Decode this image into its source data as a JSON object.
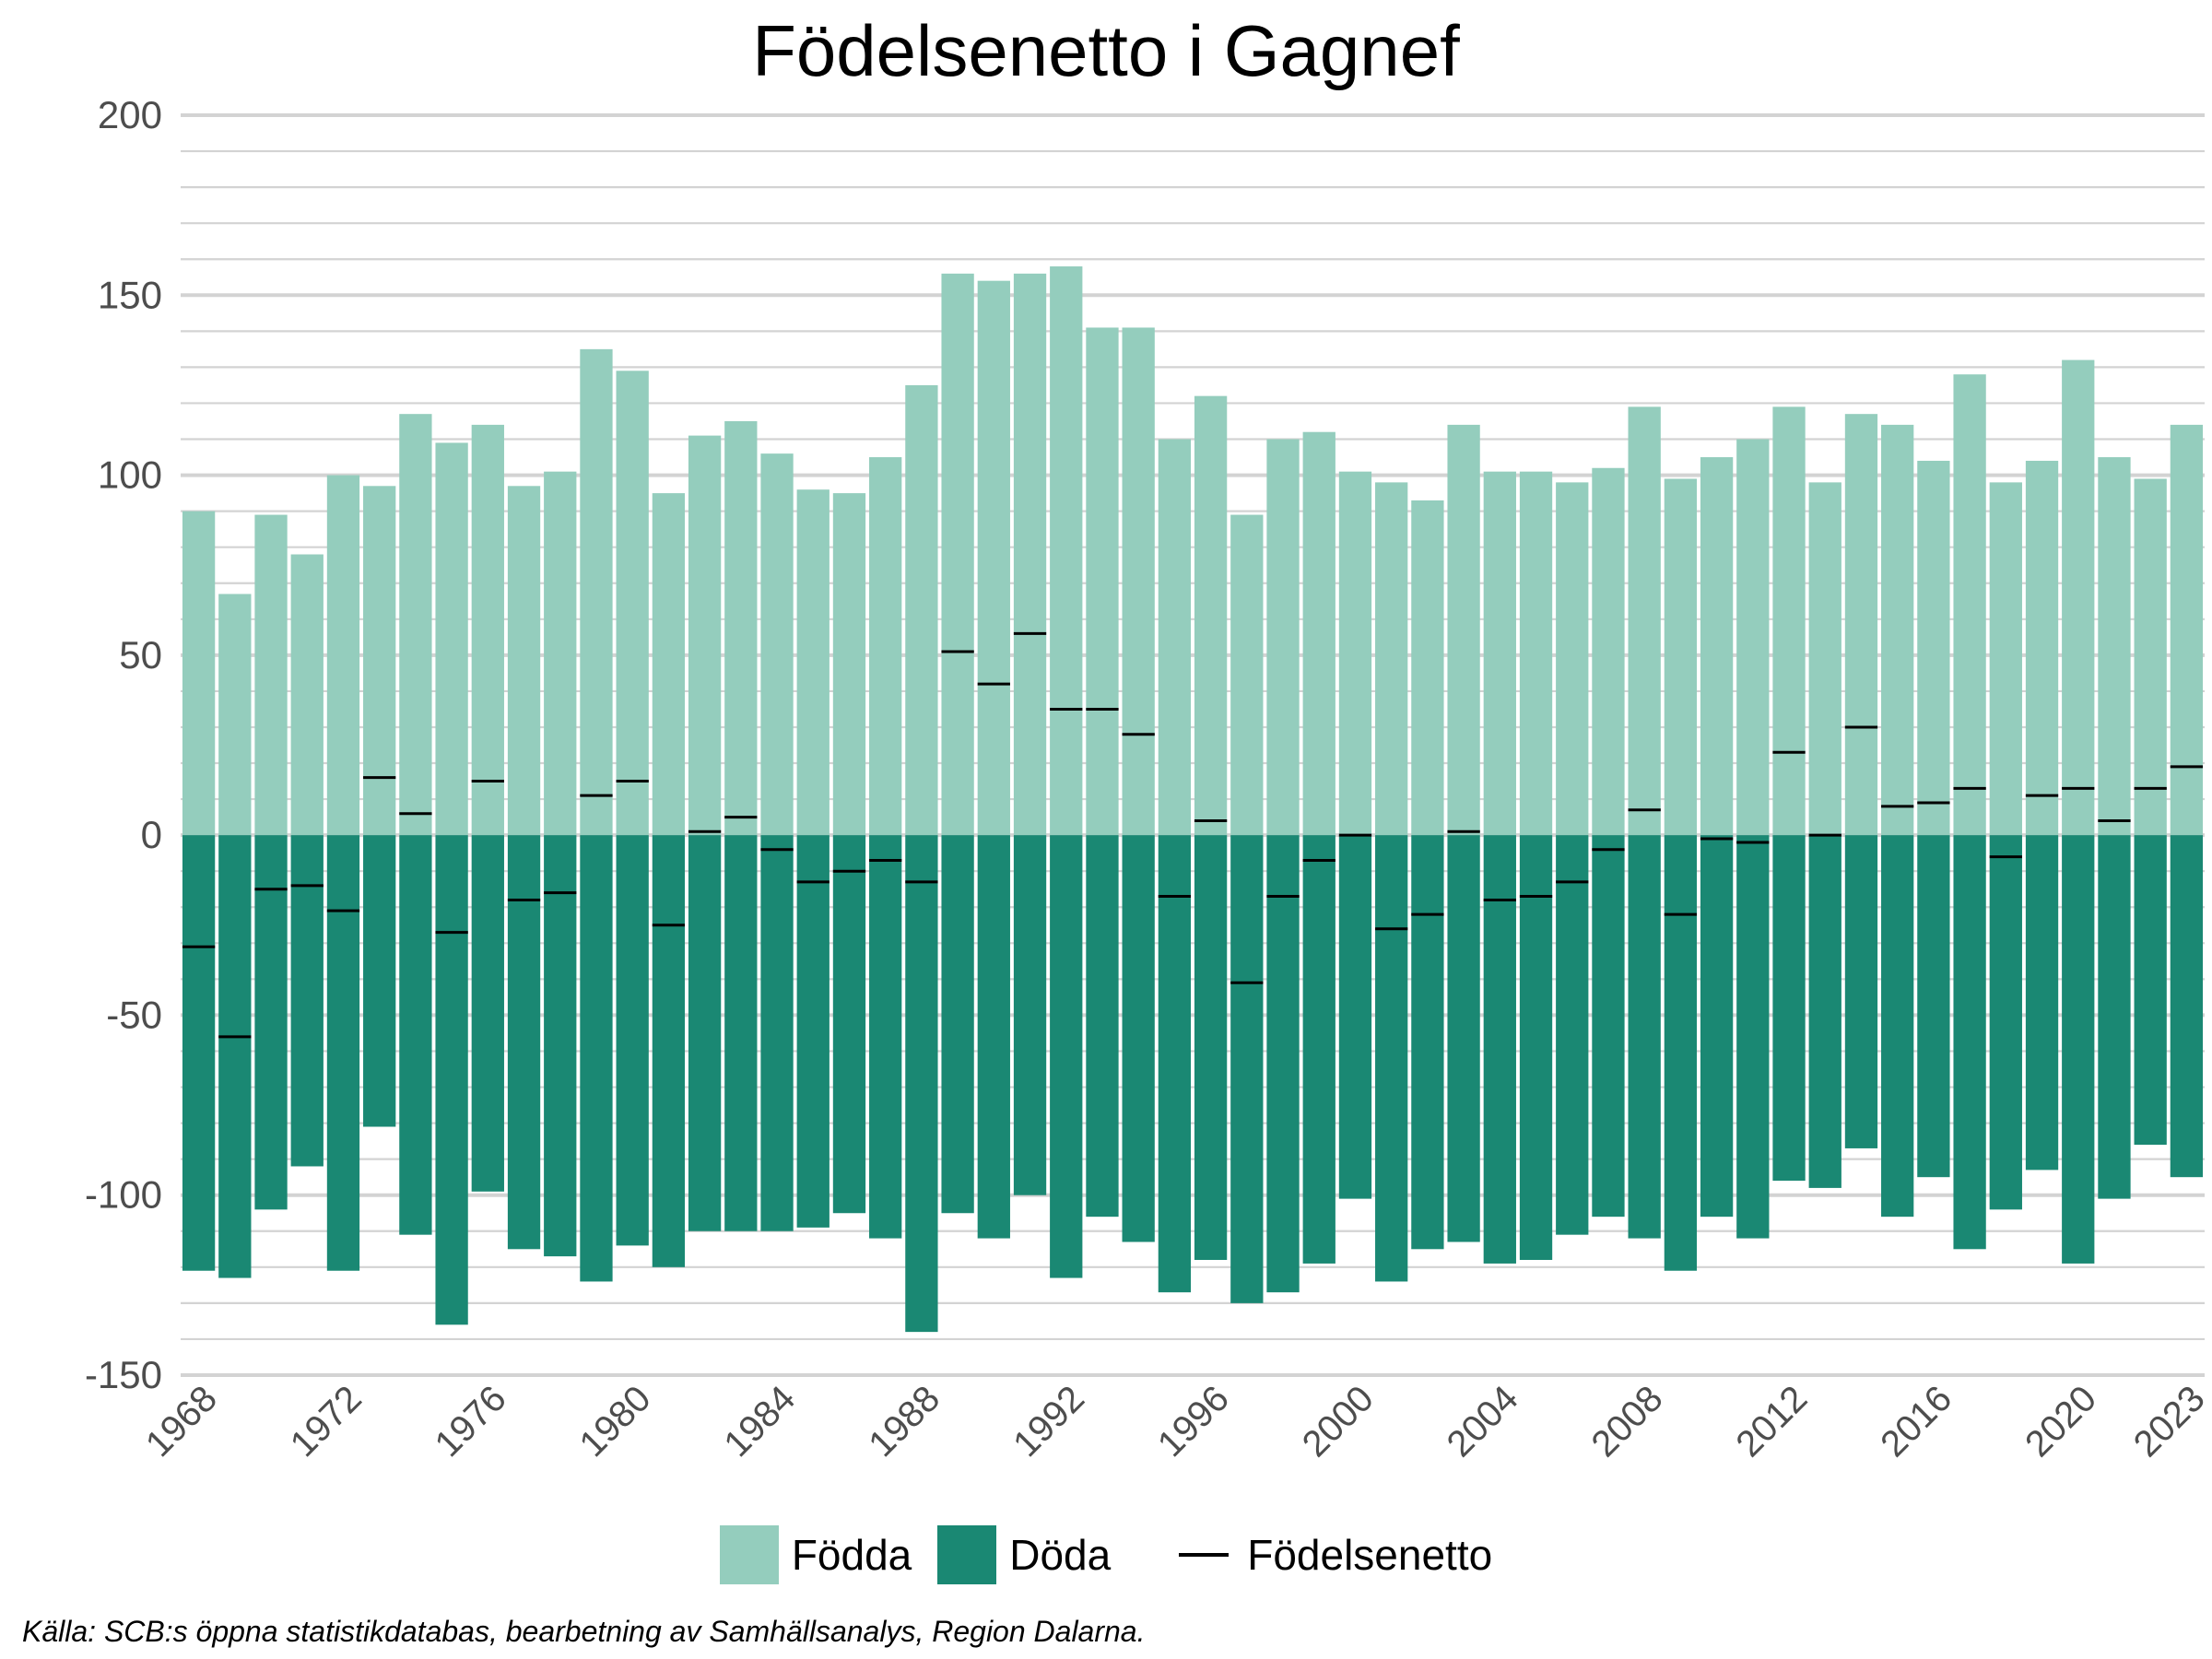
{
  "chart_data": {
    "type": "bar",
    "title": "Födelsenetto i Gagnef",
    "xlabel": "",
    "ylabel": "",
    "ylim": [
      -150,
      200
    ],
    "yticks": [
      200,
      150,
      100,
      50,
      0,
      -50,
      -100,
      -150
    ],
    "xticks": [
      1968,
      1972,
      1976,
      1980,
      1984,
      1988,
      1992,
      1996,
      2000,
      2004,
      2008,
      2012,
      2016,
      2020,
      2023
    ],
    "categories": [
      1968,
      1969,
      1970,
      1971,
      1972,
      1973,
      1974,
      1975,
      1976,
      1977,
      1978,
      1979,
      1980,
      1981,
      1982,
      1983,
      1984,
      1985,
      1986,
      1987,
      1988,
      1989,
      1990,
      1991,
      1992,
      1993,
      1994,
      1995,
      1996,
      1997,
      1998,
      1999,
      2000,
      2001,
      2002,
      2003,
      2004,
      2005,
      2006,
      2007,
      2008,
      2009,
      2010,
      2011,
      2012,
      2013,
      2014,
      2015,
      2016,
      2017,
      2018,
      2019,
      2020,
      2021,
      2022,
      2023
    ],
    "series": [
      {
        "name": "Födda",
        "color": "#94cdbd",
        "values": [
          90,
          67,
          89,
          78,
          100,
          97,
          117,
          109,
          114,
          97,
          101,
          135,
          129,
          95,
          111,
          115,
          106,
          96,
          95,
          105,
          125,
          156,
          154,
          156,
          158,
          141,
          141,
          110,
          122,
          89,
          110,
          112,
          101,
          98,
          93,
          114,
          101,
          101,
          98,
          102,
          119,
          99,
          105,
          110,
          119,
          98,
          117,
          114,
          104,
          128,
          98,
          104,
          132,
          105,
          99,
          114
        ]
      },
      {
        "name": "Döda",
        "color": "#1a8873",
        "values": [
          -121,
          -123,
          -104,
          -92,
          -121,
          -81,
          -111,
          -136,
          -99,
          -115,
          -117,
          -124,
          -114,
          -120,
          -110,
          -110,
          -110,
          -109,
          -105,
          -112,
          -138,
          -105,
          -112,
          -100,
          -123,
          -106,
          -113,
          -127,
          -118,
          -130,
          -127,
          -119,
          -101,
          -124,
          -115,
          -113,
          -119,
          -118,
          -111,
          -106,
          -112,
          -121,
          -106,
          -112,
          -96,
          -98,
          -87,
          -106,
          -95,
          -115,
          -104,
          -93,
          -119,
          -101,
          -86,
          -95
        ]
      },
      {
        "name": "Födelsenetto",
        "color": "#000000",
        "values": [
          -31,
          -56,
          -15,
          -14,
          -21,
          16,
          6,
          -27,
          15,
          -18,
          -16,
          11,
          15,
          -25,
          1,
          5,
          -4,
          -13,
          -10,
          -7,
          -13,
          51,
          42,
          56,
          35,
          35,
          28,
          -17,
          4,
          -41,
          -17,
          -7,
          0,
          -26,
          -22,
          1,
          -18,
          -17,
          -13,
          -4,
          7,
          -22,
          -1,
          -2,
          23,
          0,
          30,
          8,
          9,
          13,
          -6,
          11,
          13,
          4,
          13,
          19
        ]
      }
    ],
    "grid": true,
    "legend": "bottom"
  },
  "source": "Källa: SCB:s öppna statistikdatabas, bearbetning av Samhällsanalys, Region Dalarna."
}
